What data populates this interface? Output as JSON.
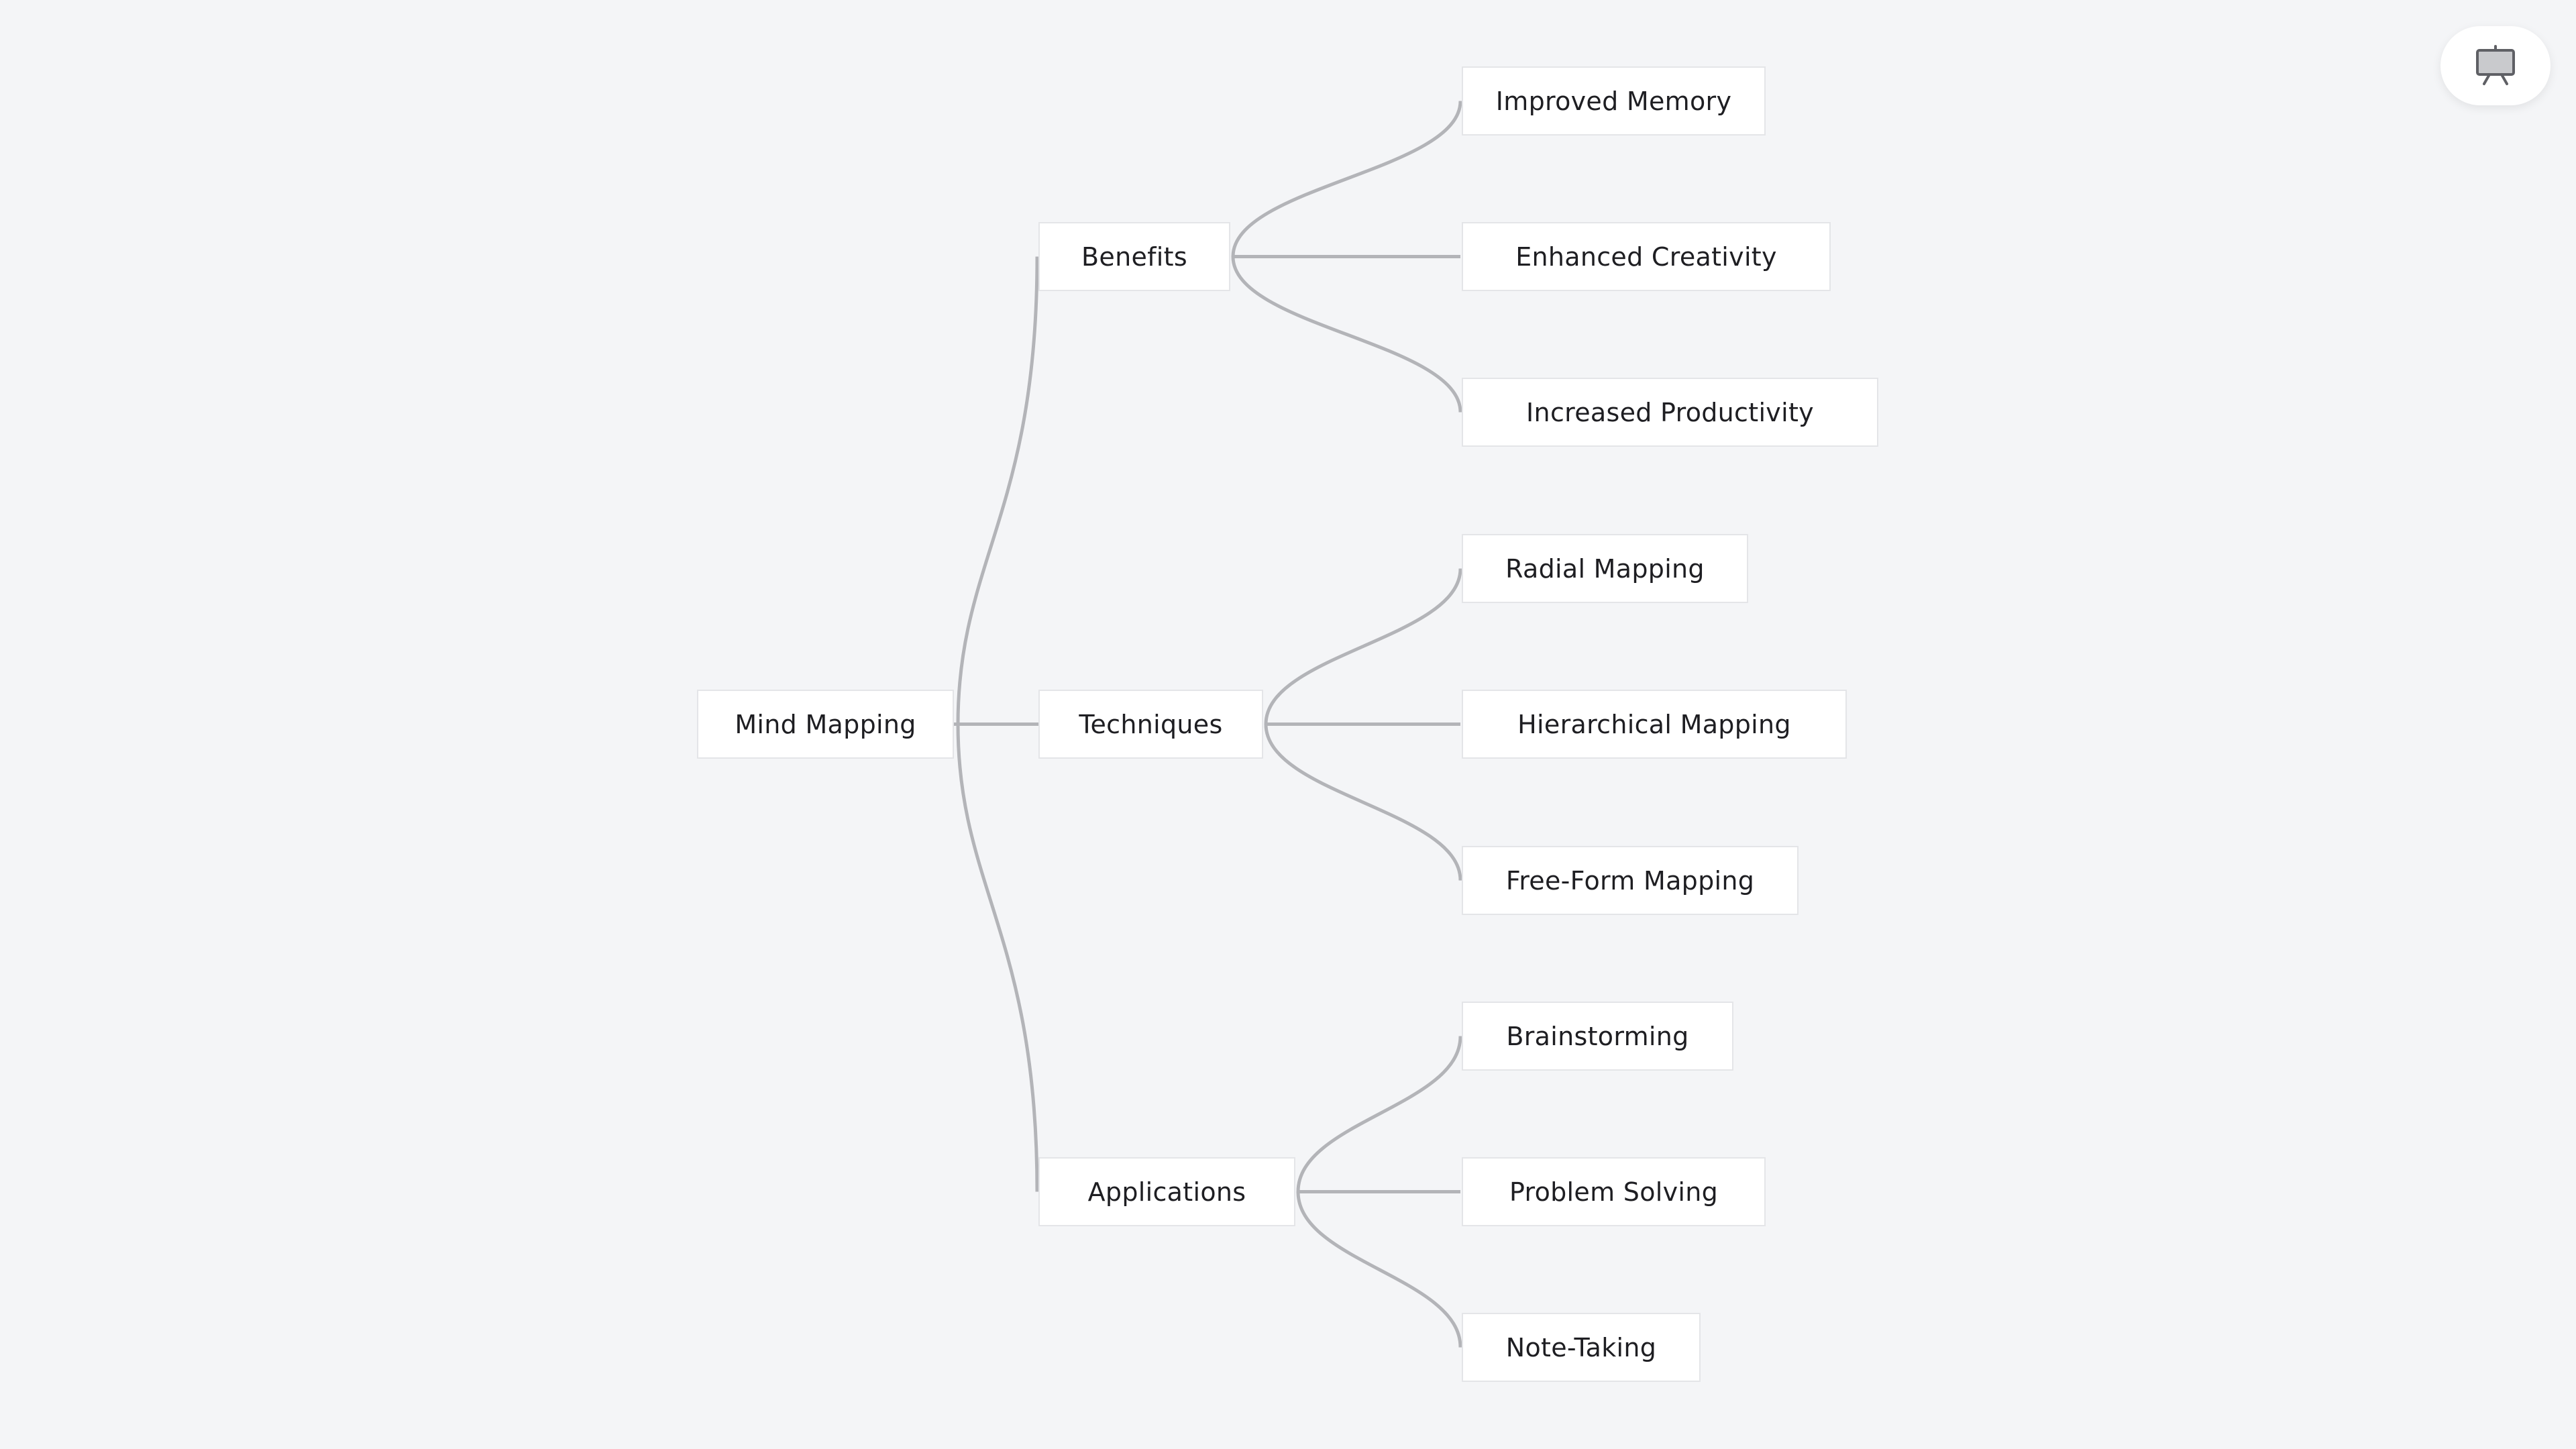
{
  "diagram": {
    "root": {
      "id": "root",
      "label": "Mind Mapping",
      "children": [
        {
          "id": "benefits",
          "label": "Benefits",
          "children": [
            {
              "id": "improved-memory",
              "label": "Improved Memory"
            },
            {
              "id": "enhanced-creativity",
              "label": "Enhanced Creativity"
            },
            {
              "id": "increased-productivity",
              "label": "Increased Productivity"
            }
          ]
        },
        {
          "id": "techniques",
          "label": "Techniques",
          "children": [
            {
              "id": "radial-mapping",
              "label": "Radial Mapping"
            },
            {
              "id": "hierarchical-mapping",
              "label": "Hierarchical Mapping"
            },
            {
              "id": "free-form-mapping",
              "label": "Free-Form Mapping"
            }
          ]
        },
        {
          "id": "applications",
          "label": "Applications",
          "children": [
            {
              "id": "brainstorming",
              "label": "Brainstorming"
            },
            {
              "id": "problem-solving",
              "label": "Problem Solving"
            },
            {
              "id": "note-taking",
              "label": "Note-Taking"
            }
          ]
        }
      ]
    }
  },
  "toolbar": {
    "present_icon": "presentation-board-icon"
  },
  "colors": {
    "background": "#f4f5f7",
    "node_fill": "#ffffff",
    "node_border": "#e4e5e8",
    "edge": "#b3b4b8",
    "text": "#1e1e22",
    "icon": "#5f6065"
  }
}
